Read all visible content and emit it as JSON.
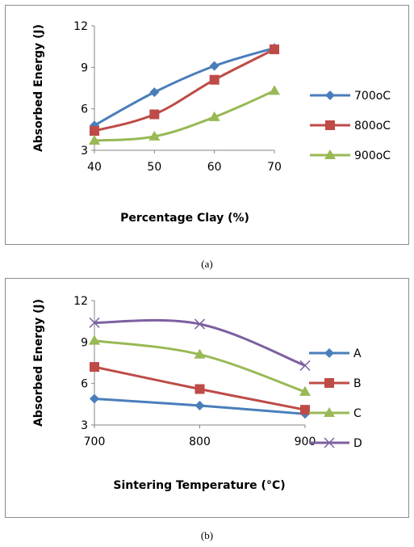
{
  "captions": {
    "a": "(a)",
    "b": "(b)"
  },
  "chart_data": [
    {
      "type": "line",
      "xlabel": "Percentage Clay (%)",
      "ylabel": "Absorbed Energy (J)",
      "x": [
        40,
        50,
        60,
        70
      ],
      "xticks": [
        "40",
        "50",
        "60",
        "70"
      ],
      "ylim": [
        3,
        12
      ],
      "yticks": [
        3,
        6,
        9,
        12
      ],
      "grid": false,
      "legend": "right",
      "series": [
        {
          "name": "700oC",
          "color": "#4a7ebb",
          "marker": "diamond",
          "values": [
            4.8,
            7.2,
            9.1,
            10.4
          ]
        },
        {
          "name": "800oC",
          "color": "#be4b48",
          "marker": "square",
          "values": [
            4.4,
            5.6,
            8.1,
            10.3
          ]
        },
        {
          "name": "900oC",
          "color": "#98b954",
          "marker": "triangle",
          "values": [
            3.7,
            4.0,
            5.4,
            7.3
          ]
        }
      ]
    },
    {
      "type": "line",
      "xlabel": "Sintering Temperature (°C)",
      "ylabel": "Absorbed Energy (J)",
      "x": [
        700,
        800,
        900
      ],
      "xticks": [
        "700",
        "800",
        "900"
      ],
      "ylim": [
        3,
        12
      ],
      "yticks": [
        3,
        6,
        9,
        12
      ],
      "grid": false,
      "legend": "right",
      "series": [
        {
          "name": "A",
          "color": "#4a7ebb",
          "marker": "diamond",
          "values": [
            4.9,
            4.4,
            3.8
          ]
        },
        {
          "name": "B",
          "color": "#be4b48",
          "marker": "square",
          "values": [
            7.2,
            5.6,
            4.1
          ]
        },
        {
          "name": "C",
          "color": "#98b954",
          "marker": "triangle",
          "values": [
            9.1,
            8.1,
            5.4
          ]
        },
        {
          "name": "D",
          "color": "#7d60a0",
          "marker": "x",
          "values": [
            10.4,
            10.3,
            7.3
          ]
        }
      ]
    }
  ]
}
